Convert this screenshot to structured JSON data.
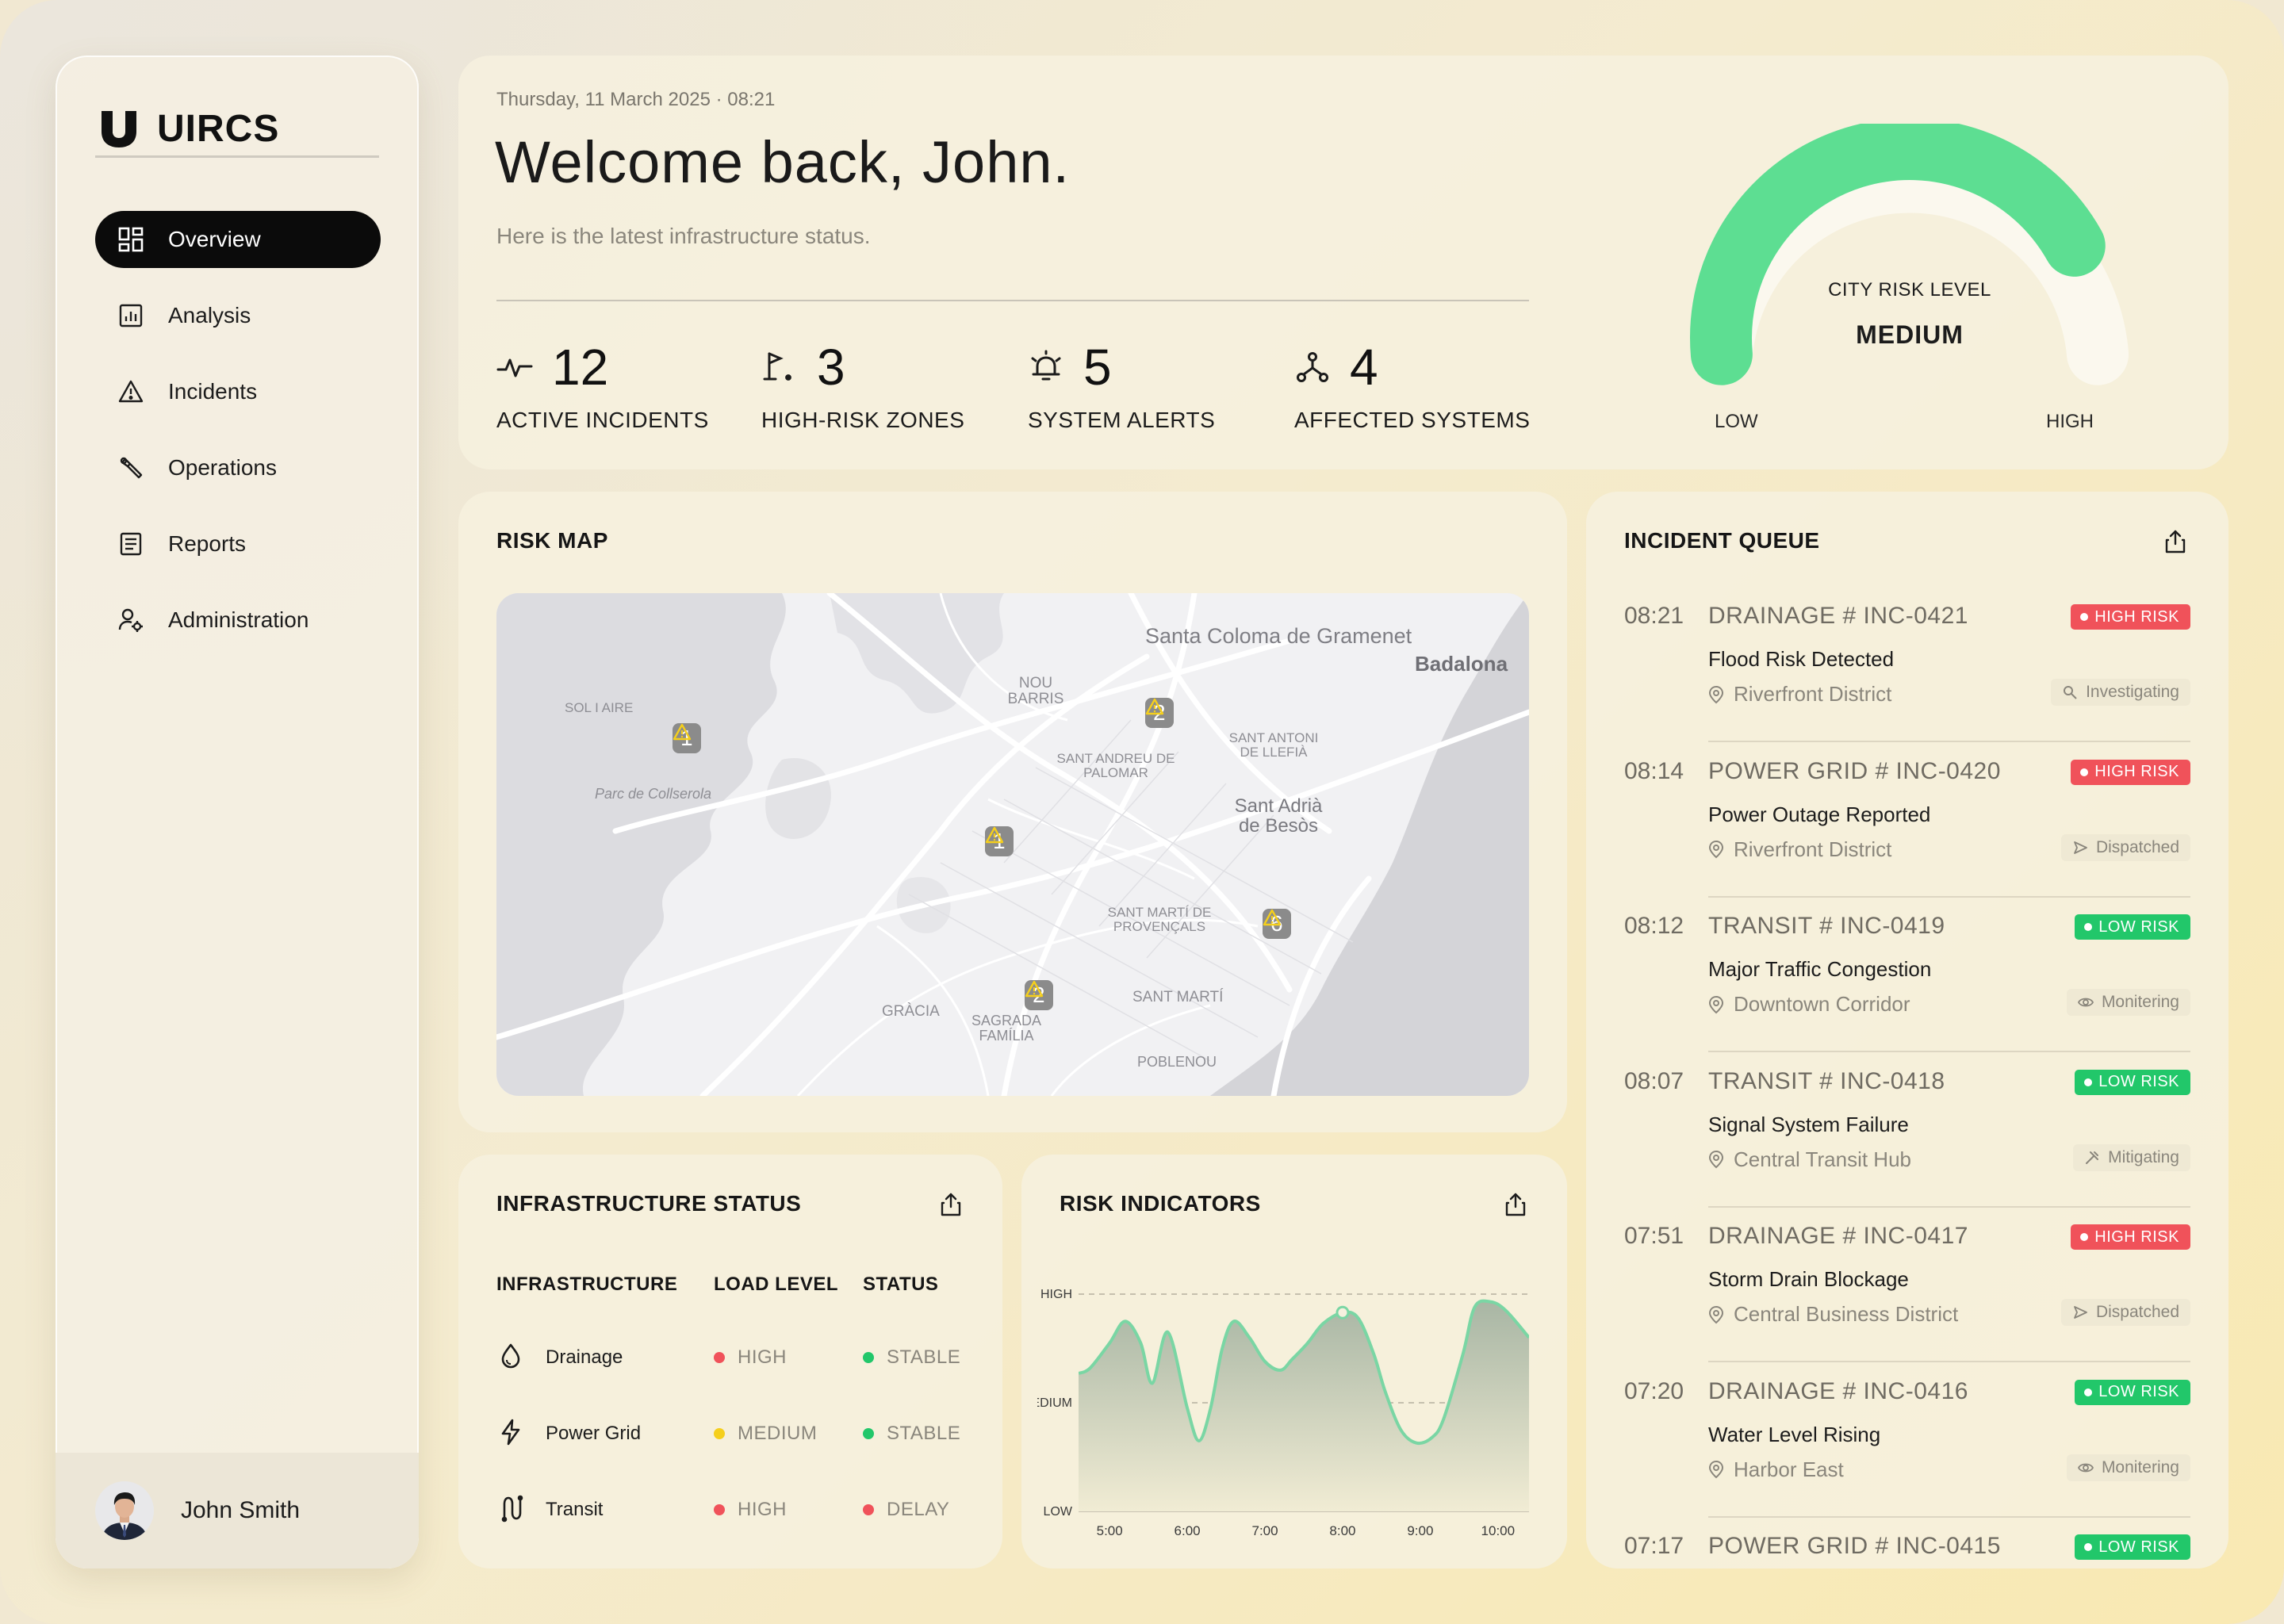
{
  "app": {
    "name": "UIRCS"
  },
  "sidebar": {
    "items": [
      {
        "label": "Overview",
        "icon": "grid-icon",
        "active": true
      },
      {
        "label": "Analysis",
        "icon": "bar-chart-icon"
      },
      {
        "label": "Incidents",
        "icon": "warning-icon"
      },
      {
        "label": "Operations",
        "icon": "wrench-icon"
      },
      {
        "label": "Reports",
        "icon": "document-icon"
      },
      {
        "label": "Administration",
        "icon": "user-gear-icon"
      }
    ],
    "user": {
      "name": "John Smith"
    }
  },
  "header": {
    "datetime": "Thursday, 11 March 2025 · 08:21",
    "welcome": "Welcome back, John.",
    "subtitle": "Here is the latest infrastructure status.",
    "stats": [
      {
        "value": "12",
        "label": "ACTIVE INCIDENTS",
        "icon": "pulse-icon"
      },
      {
        "value": "3",
        "label": "HIGH-RISK ZONES",
        "icon": "flag-pin-icon"
      },
      {
        "value": "5",
        "label": "SYSTEM ALERTS",
        "icon": "alarm-bell-icon"
      },
      {
        "value": "4",
        "label": "AFFECTED SYSTEMS",
        "icon": "network-nodes-icon"
      }
    ],
    "gauge": {
      "title": "CITY RISK LEVEL",
      "value": "MEDIUM",
      "low": "LOW",
      "high": "HIGH",
      "level": 0.82,
      "color": "#5dde92"
    }
  },
  "risk_map": {
    "title": "RISK MAP",
    "places": [
      {
        "name": "Santa Coloma de Gramenet"
      },
      {
        "name": "Badalona"
      },
      {
        "name": "NOU BARRIS"
      },
      {
        "name": "SOL I AIRE"
      },
      {
        "name": "Parc de Collserola"
      },
      {
        "name": "SANT ANDREU DE PALOMAR"
      },
      {
        "name": "SANT ANTONI DE LLEFIÀ"
      },
      {
        "name": "Sant Adrià de Besòs"
      },
      {
        "name": "SANT MARTÍ DE PROVENÇALS"
      },
      {
        "name": "SANT MARTÍ"
      },
      {
        "name": "GRÀCIA"
      },
      {
        "name": "SAGRADA FAMÍLIA"
      },
      {
        "name": "POBLENOU"
      }
    ],
    "markers": [
      "1",
      "2",
      "1",
      "6",
      "2"
    ]
  },
  "incident_queue": {
    "title": "INCIDENT QUEUE",
    "items": [
      {
        "time": "08:21",
        "id": "DRAINAGE # INC-0421",
        "risk": "HIGH RISK",
        "title": "Flood Risk Detected",
        "location": "Riverfront District",
        "status": "Investigating",
        "status_icon": "search-icon"
      },
      {
        "time": "08:14",
        "id": "POWER GRID # INC-0420",
        "risk": "HIGH RISK",
        "title": "Power Outage Reported",
        "location": "Riverfront District",
        "status": "Dispatched",
        "status_icon": "send-icon"
      },
      {
        "time": "08:12",
        "id": "TRANSIT # INC-0419",
        "risk": "LOW RISK",
        "title": "Major Traffic Congestion",
        "location": "Downtown Corridor",
        "status": "Monitering",
        "status_icon": "eye-icon"
      },
      {
        "time": "08:07",
        "id": "TRANSIT # INC-0418",
        "risk": "LOW RISK",
        "title": "Signal System Failure",
        "location": "Central Transit Hub",
        "status": "Mitigating",
        "status_icon": "tools-icon"
      },
      {
        "time": "07:51",
        "id": "DRAINAGE # INC-0417",
        "risk": "HIGH RISK",
        "title": "Storm Drain Blockage",
        "location": "Central Business District",
        "status": "Dispatched",
        "status_icon": "send-icon"
      },
      {
        "time": "07:20",
        "id": "DRAINAGE # INC-0416",
        "risk": "LOW RISK",
        "title": "Water Level Rising",
        "location": "Harbor East",
        "status": "Monitering",
        "status_icon": "eye-icon"
      },
      {
        "time": "07:17",
        "id": "POWER GRID # INC-0415",
        "risk": "LOW RISK",
        "title": "",
        "location": "",
        "status": "",
        "status_icon": ""
      }
    ],
    "colors": {
      "high": "#f0525a",
      "low": "#22c76a"
    }
  },
  "infrastructure": {
    "title": "INFRASTRUCTURE STATUS",
    "headers": {
      "name": "INFRASTRUCTURE",
      "load": "LOAD LEVEL",
      "status": "STATUS"
    },
    "rows": [
      {
        "name": "Drainage",
        "icon": "water-drop-icon",
        "load": "HIGH",
        "load_color": "#f0525a",
        "status": "STABLE",
        "status_color": "#22c76a"
      },
      {
        "name": "Power Grid",
        "icon": "lightning-icon",
        "load": "MEDIUM",
        "load_color": "#f5cf1c",
        "status": "STABLE",
        "status_color": "#22c76a"
      },
      {
        "name": "Transit",
        "icon": "route-icon",
        "load": "HIGH",
        "load_color": "#f0525a",
        "status": "DELAY",
        "status_color": "#f0525a"
      }
    ]
  },
  "risk_indicators": {
    "title": "RISK INDICATORS"
  },
  "chart_data": {
    "type": "area",
    "title": "RISK INDICATORS",
    "xlabel": "",
    "ylabel": "",
    "categories": [
      "5:00",
      "6:00",
      "7:00",
      "8:00",
      "9:00",
      "10:00"
    ],
    "y_ticks": [
      "LOW",
      "MEDIUM",
      "HIGH"
    ],
    "ylim": [
      0,
      2
    ],
    "x": [
      4.6,
      4.75,
      5.0,
      5.2,
      5.4,
      5.55,
      5.75,
      6.0,
      6.15,
      6.3,
      6.45,
      6.6,
      6.8,
      7.0,
      7.2,
      7.35,
      7.55,
      7.75,
      8.0,
      8.2,
      8.4,
      8.55,
      8.75,
      8.95,
      9.15,
      9.3,
      9.55,
      9.7,
      9.9,
      10.1,
      10.4
    ],
    "series": [
      {
        "values": [
          1.27,
          1.32,
          1.55,
          1.75,
          1.55,
          1.18,
          1.65,
          0.95,
          0.65,
          0.95,
          1.5,
          1.75,
          1.6,
          1.38,
          1.3,
          1.4,
          1.55,
          1.73,
          1.83,
          1.78,
          1.45,
          1.1,
          0.75,
          0.63,
          0.68,
          0.85,
          1.45,
          1.88,
          1.93,
          1.85,
          1.6
        ]
      }
    ],
    "marker_at": "8:00",
    "grid": true,
    "colors": {
      "line": "#7ad6a4",
      "fill_top": "#a8b6a4",
      "fill_bottom": "#f1ecd4"
    }
  }
}
